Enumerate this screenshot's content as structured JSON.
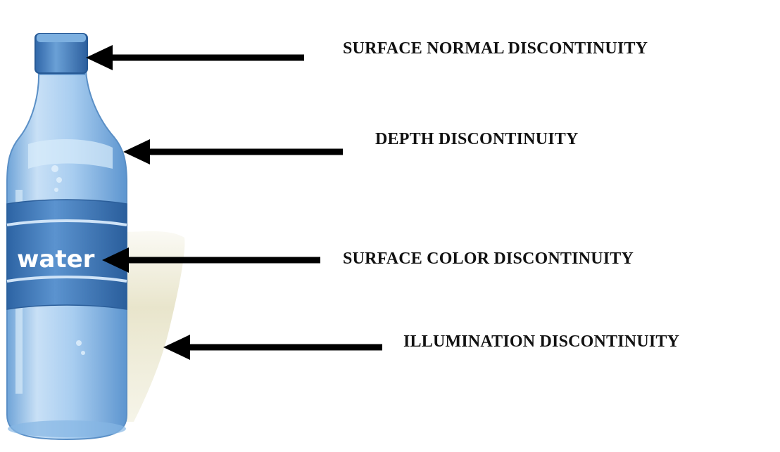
{
  "bottle": {
    "label_text": "water",
    "colors": {
      "cap": "#4a86c4",
      "body": "#a9cdf0",
      "band": "#3d78b8",
      "shadow": "#ecebd8",
      "arrow": "#000000"
    }
  },
  "callouts": [
    {
      "label": "SURFACE NORMAL  DISCONTINUITY",
      "points_to": "bottle cap"
    },
    {
      "label": "DEPTH DISCONTINUITY",
      "points_to": "bottle shoulder edge"
    },
    {
      "label": "SURFACE COLOR  DISCONTINUITY",
      "points_to": "water label"
    },
    {
      "label": "ILLUMINATION  DISCONTINUITY",
      "points_to": "shadow edge"
    }
  ]
}
